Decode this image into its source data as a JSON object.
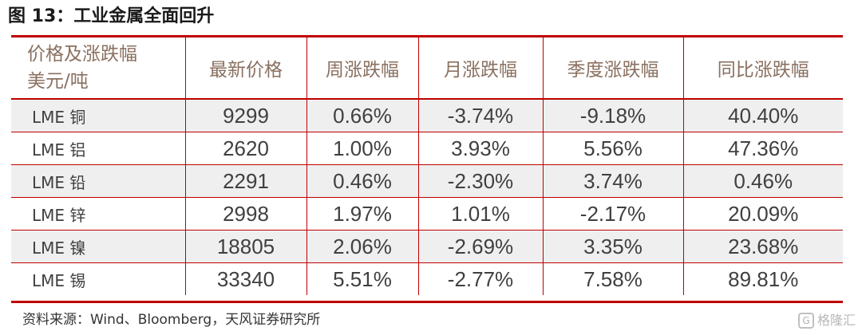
{
  "figure": {
    "title": "图 13：工业金属全面回升",
    "source": "资料来源：Wind、Bloomberg，天风证券研究所"
  },
  "table": {
    "header": {
      "line1": "价格及涨跌幅",
      "line2": "美元/吨",
      "columns": [
        "最新价格",
        "周涨跌幅",
        "月涨跌幅",
        "季度涨跌幅",
        "同比涨跌幅"
      ]
    },
    "rows": [
      {
        "name": "LME 铜",
        "cells": [
          "9299",
          "0.66%",
          "-3.74%",
          "-9.18%",
          "40.40%"
        ]
      },
      {
        "name": "LME 铝",
        "cells": [
          "2620",
          "1.00%",
          "3.93%",
          "5.56%",
          "47.36%"
        ]
      },
      {
        "name": "LME 铅",
        "cells": [
          "2291",
          "0.46%",
          "-2.30%",
          "3.74%",
          "0.46%"
        ]
      },
      {
        "name": "LME 锌",
        "cells": [
          "2998",
          "1.97%",
          "1.01%",
          "-2.17%",
          "20.09%"
        ]
      },
      {
        "name": "LME 镍",
        "cells": [
          "18805",
          "2.06%",
          "-2.69%",
          "3.35%",
          "23.68%"
        ]
      },
      {
        "name": "LME 锡",
        "cells": [
          "33340",
          "5.51%",
          "-2.77%",
          "7.58%",
          "89.81%"
        ]
      }
    ]
  },
  "watermark": {
    "text": "格隆汇",
    "icon": "G"
  }
}
